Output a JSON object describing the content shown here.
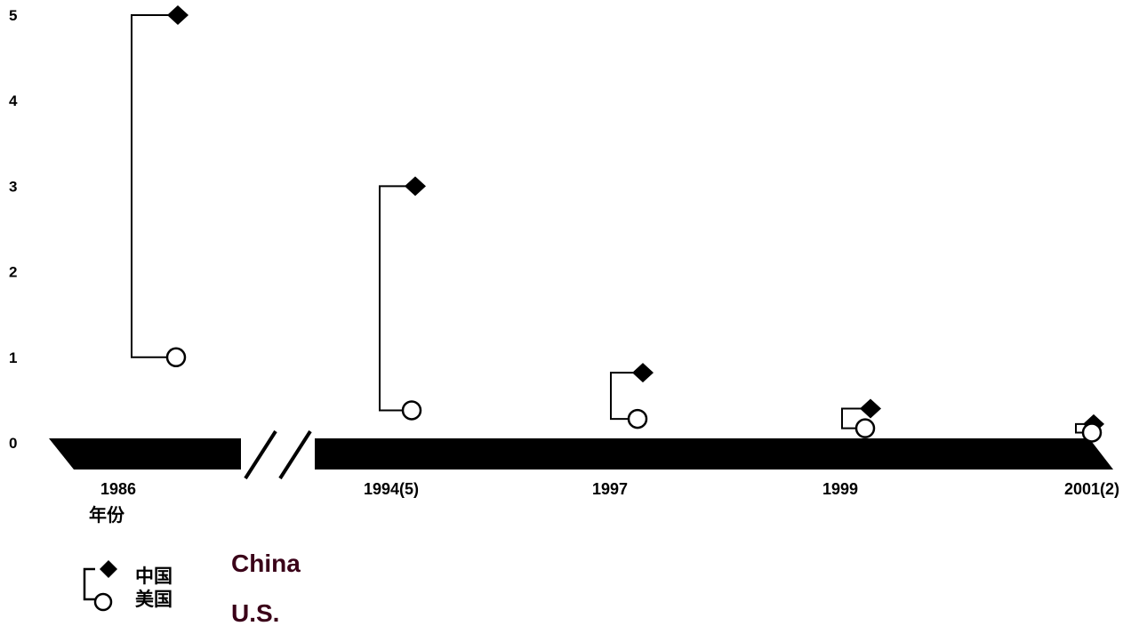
{
  "chart_data": {
    "type": "scatter",
    "title": "",
    "xlabel": "年份",
    "ylabel": "",
    "ylim": [
      0,
      5
    ],
    "y_ticks": [
      "0",
      "1",
      "2",
      "3",
      "4",
      "5"
    ],
    "categories": [
      "1986",
      "1994(5)",
      "1997",
      "1999",
      "2001(2)"
    ],
    "axis_break_after": "1986",
    "series": [
      {
        "name": "中国",
        "marker": "filled-diamond",
        "values": [
          5.0,
          3.0,
          0.82,
          0.4,
          0.22
        ]
      },
      {
        "name": "美国",
        "marker": "open-circle",
        "values": [
          1.0,
          0.38,
          0.28,
          0.17,
          0.12
        ]
      }
    ],
    "legend_english": [
      "China",
      "U.S."
    ],
    "legend_position": "bottom-left",
    "grid": false
  },
  "colors": {
    "ink": "#000000",
    "english_legend": "#3a0018"
  }
}
